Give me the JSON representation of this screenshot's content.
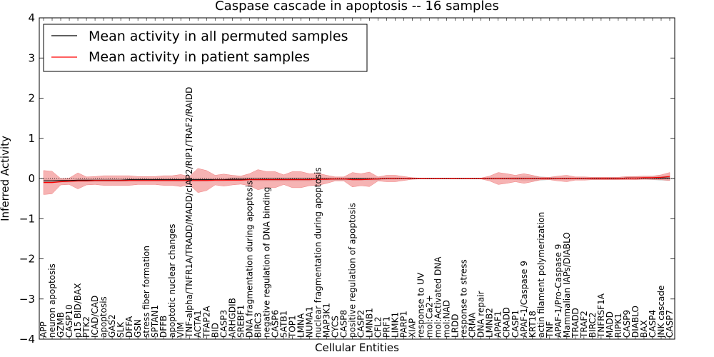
{
  "chart_data": {
    "type": "line",
    "title": "Caspase cascade in apoptosis -- 16 samples",
    "xlabel": "Cellular Entities",
    "ylabel": "Inferred Activity",
    "ylim": [
      -4,
      4
    ],
    "yticks": [
      -4,
      -3,
      -2,
      -1,
      0,
      1,
      2,
      3,
      4
    ],
    "ytick_labels": [
      "−4",
      "−3",
      "−2",
      "−1",
      "0",
      "1",
      "2",
      "3",
      "4"
    ],
    "legend_position": "top-left",
    "categories": [
      "APP",
      "neuron apoptosis",
      "GZMB",
      "CASP10",
      "p15 BID/BAX",
      "PTK2",
      "ICAD/CAD",
      "apoptosis",
      "GAS2",
      "SLK",
      "DFFA",
      "GSN",
      "stress fiber formation",
      "SPTAN1",
      "DFFB",
      "apoptotic nuclear changes",
      "VIM",
      "TNF-alpha/TNFR1A/TRADD/MADD/cIAP2/RIP1/TRAF2/RAIDD",
      "ACTA1",
      "TFAP2A",
      "BID",
      "CASP3",
      "ARHGDIB",
      "SREBF1",
      "DNA fragmentation during apoptosis",
      "BIRC3",
      "negative regulation of DNA binding",
      "CASP6",
      "SATB1",
      "TOP1",
      "LMNA",
      "NUMA1",
      "nuclear fragmentation during apoptosis",
      "MAP3K1",
      "CYCS",
      "CASP8",
      "positive regulation of apoptosis",
      "CASP2",
      "LMNB1",
      "CFL2",
      "PRF1",
      "LIMK1",
      "PARP1",
      "XIAP",
      "response to UV",
      "mol:Ca2+",
      "mol:Activated DNA",
      "mol:NAD",
      "LRDD",
      "response to stress",
      "CRMA",
      "DNA repair",
      "LMNB2",
      "APAF1",
      "CRADD",
      "CASP1",
      "APAF-1/Caspase 9",
      "KRT18",
      "actin filament polymerization",
      "TNF",
      "APAF-1/Pro-Caspase 9",
      "Mammalian IAPs/DIABLO",
      "TRADD",
      "TRAF2",
      "BIRC2",
      "TNFRSF1A",
      "MADD",
      "RIPK1",
      "CASP9",
      "DIABLO",
      "BAX",
      "CASP4",
      "JNK cascade",
      "CASP7"
    ],
    "series": [
      {
        "name": "Mean activity in all permuted samples",
        "color": "#000000",
        "band_color": "#bbbbbb",
        "values": [
          -0.06,
          -0.06,
          -0.05,
          -0.05,
          -0.04,
          -0.04,
          -0.04,
          -0.04,
          -0.04,
          -0.04,
          -0.03,
          -0.03,
          -0.03,
          -0.03,
          -0.03,
          -0.03,
          -0.03,
          -0.03,
          -0.03,
          -0.03,
          -0.03,
          -0.03,
          -0.02,
          -0.02,
          -0.02,
          -0.02,
          -0.02,
          -0.02,
          -0.02,
          -0.02,
          -0.02,
          -0.02,
          -0.01,
          -0.01,
          -0.01,
          -0.01,
          -0.01,
          -0.01,
          -0.01,
          -0.01,
          0,
          0,
          0,
          0,
          0,
          0,
          0,
          0,
          0,
          0,
          0,
          0,
          0,
          0,
          0,
          0,
          0,
          0,
          0,
          0,
          0,
          0,
          0,
          0,
          0,
          0,
          0,
          0,
          0.01,
          0.01,
          0.01,
          0.01,
          0.01,
          0.01
        ],
        "spread": [
          0.05,
          0.05,
          0.04,
          0.04,
          0.04,
          0.04,
          0.04,
          0.04,
          0.04,
          0.04,
          0.04,
          0.04,
          0.04,
          0.04,
          0.04,
          0.04,
          0.04,
          0.04,
          0.04,
          0.04,
          0.04,
          0.04,
          0.04,
          0.04,
          0.04,
          0.04,
          0.04,
          0.04,
          0.04,
          0.04,
          0.04,
          0.04,
          0.03,
          0.03,
          0.03,
          0.03,
          0.03,
          0.03,
          0.03,
          0.03,
          0.02,
          0.02,
          0.01,
          0.01,
          0.01,
          0.01,
          0.01,
          0.01,
          0.01,
          0.01,
          0.01,
          0.01,
          0.02,
          0.02,
          0.02,
          0.03,
          0.04,
          0.04,
          0.04,
          0.03,
          0.02,
          0.02,
          0.02,
          0.02,
          0.02,
          0.02,
          0.02,
          0.02,
          0.02,
          0.03,
          0.03,
          0.04,
          0.05,
          0.06
        ]
      },
      {
        "name": "Mean activity in patient samples",
        "color": "#ff0000",
        "band_color": "#f08080",
        "values": [
          -0.1,
          -0.1,
          -0.08,
          -0.07,
          -0.06,
          -0.06,
          -0.05,
          -0.05,
          -0.05,
          -0.05,
          -0.05,
          -0.05,
          -0.05,
          -0.05,
          -0.05,
          -0.05,
          -0.05,
          -0.05,
          -0.05,
          -0.05,
          -0.04,
          -0.04,
          -0.04,
          -0.04,
          -0.03,
          -0.03,
          -0.03,
          -0.03,
          -0.03,
          -0.03,
          -0.03,
          -0.03,
          -0.02,
          -0.02,
          -0.01,
          -0.01,
          -0.03,
          -0.03,
          -0.02,
          -0.01,
          0,
          0,
          0,
          0,
          0,
          0,
          0,
          0,
          0,
          0,
          0,
          0,
          0,
          0,
          0,
          0,
          0,
          0,
          0,
          0,
          0,
          0,
          0,
          0,
          0,
          0,
          0,
          0,
          0.01,
          0.01,
          0.02,
          0.02,
          0.03,
          0.05
        ],
        "spread": [
          0.3,
          0.28,
          0.08,
          0.08,
          0.2,
          0.1,
          0.1,
          0.12,
          0.12,
          0.12,
          0.12,
          0.1,
          0.1,
          0.1,
          0.12,
          0.12,
          0.15,
          0.1,
          0.3,
          0.25,
          0.12,
          0.15,
          0.12,
          0.1,
          0.15,
          0.25,
          0.2,
          0.2,
          0.12,
          0.2,
          0.2,
          0.15,
          0.15,
          0.1,
          0.05,
          0.05,
          0.18,
          0.15,
          0.18,
          0.05,
          0.08,
          0.08,
          0.05,
          0.02,
          0.01,
          0.01,
          0.01,
          0.01,
          0.01,
          0.01,
          0.01,
          0.01,
          0.06,
          0.15,
          0.12,
          0.08,
          0.12,
          0.08,
          0.03,
          0.03,
          0.06,
          0.08,
          0.04,
          0.04,
          0.03,
          0.03,
          0.03,
          0.03,
          0.04,
          0.04,
          0.04,
          0.04,
          0.06,
          0.1
        ]
      }
    ]
  }
}
